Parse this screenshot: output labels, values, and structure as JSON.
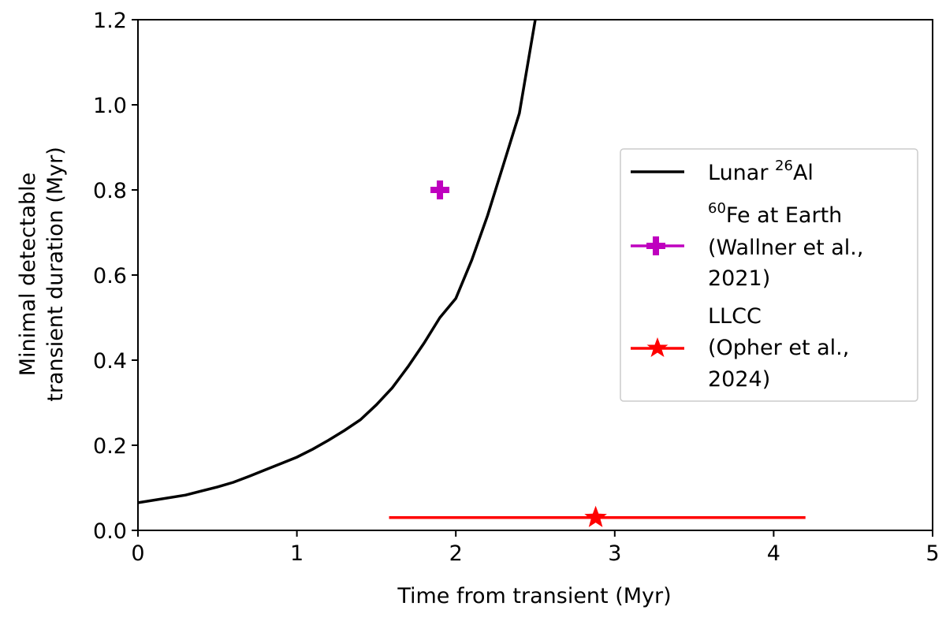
{
  "chart_data": {
    "type": "line",
    "xlabel": "Time from transient (Myr)",
    "ylabel_lines": [
      "Minimal detectable",
      "transient duration (Myr)"
    ],
    "xlim": [
      0,
      5
    ],
    "ylim": [
      0,
      1.2
    ],
    "xticks": [
      0,
      1,
      2,
      3,
      4,
      5
    ],
    "xtick_labels": [
      "0",
      "1",
      "2",
      "3",
      "4",
      "5"
    ],
    "yticks": [
      0.0,
      0.2,
      0.4,
      0.6,
      0.8,
      1.0,
      1.2
    ],
    "ytick_labels": [
      "0.0",
      "0.2",
      "0.4",
      "0.6",
      "0.8",
      "1.0",
      "1.2"
    ],
    "grid": false,
    "legend_position": "center-right",
    "series": [
      {
        "name": "Lunar 26Al",
        "kind": "line",
        "color": "#000000",
        "x": [
          0,
          0.3,
          0.5,
          0.6,
          0.7,
          0.8,
          0.9,
          1.0,
          1.1,
          1.2,
          1.3,
          1.4,
          1.5,
          1.6,
          1.7,
          1.8,
          1.9,
          2.0,
          2.1,
          2.2,
          2.3,
          2.4,
          2.5
        ],
        "y": [
          0.065,
          0.083,
          0.102,
          0.113,
          0.127,
          0.142,
          0.157,
          0.172,
          0.191,
          0.212,
          0.235,
          0.26,
          0.295,
          0.335,
          0.385,
          0.44,
          0.5,
          0.545,
          0.635,
          0.74,
          0.86,
          0.98,
          1.2
        ]
      },
      {
        "name": "60Fe at Earth (Wallner et al., 2021)",
        "kind": "point",
        "marker": "plus",
        "color": "#bf00bf",
        "x": [
          1.9
        ],
        "y": [
          0.8
        ]
      },
      {
        "name": "LLCC (Opher et al., 2024)",
        "kind": "errorbar",
        "marker": "star",
        "color": "#ff0000",
        "x": [
          2.88
        ],
        "y": [
          0.03
        ],
        "xerr_range": [
          1.58,
          4.2
        ]
      }
    ],
    "legend": [
      {
        "lines": [
          "Lunar ",
          "26",
          "Al"
        ],
        "pattern": "text-sup-text"
      },
      {
        "lines": [
          "60",
          "Fe at Earth",
          "(Wallner et al.,",
          "2021)"
        ],
        "pattern": "sup-text-lines"
      },
      {
        "lines": [
          "LLCC",
          "(Opher et al.,",
          "2024)"
        ],
        "pattern": "lines"
      }
    ]
  }
}
